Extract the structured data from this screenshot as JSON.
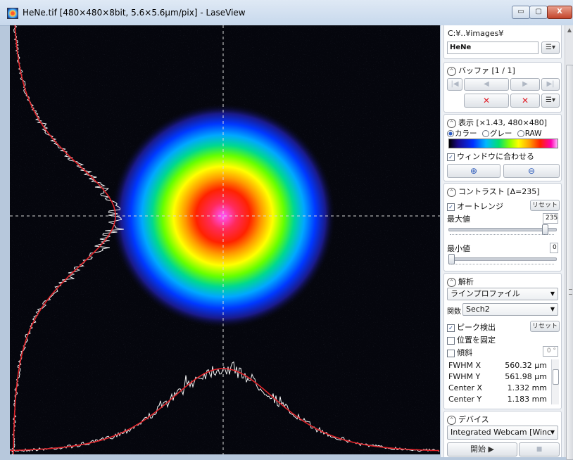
{
  "window": {
    "title": "HeNe.tif [480×480×8bit, 5.6×5.6μm/pix] - LaseView",
    "min_symbol": "▭",
    "max_symbol": "▢",
    "close_symbol": "X"
  },
  "file": {
    "path": "C:¥..¥images¥",
    "name": "HeNe"
  },
  "buffer": {
    "header": "バッファ [1 / 1]",
    "first_symbol": "|◀",
    "prev_symbol": "◀",
    "next_symbol": "▶",
    "last_symbol": "▶|",
    "delete_symbol": "✕",
    "delete_all_symbol": "✕"
  },
  "display": {
    "header": "表示 [×1.43, 480×480]",
    "modes": [
      "カラー",
      "グレー",
      "RAW"
    ],
    "selected_mode": "カラー",
    "fit_window_label": "ウィンドウに合わせる",
    "fit_window_checked": true,
    "zoom_in_symbol": "⊕",
    "zoom_out_symbol": "⊖"
  },
  "contrast": {
    "header": "コントラスト [Δ=235]",
    "auto_range_label": "オートレンジ",
    "auto_range_checked": true,
    "reset_label": "リセット",
    "max_label": "最大値",
    "max_value": "235",
    "min_label": "最小値",
    "min_value": "0",
    "max_fraction": 0.92,
    "min_fraction": 0.0
  },
  "analysis": {
    "header": "解析",
    "mode": "ラインプロファイル",
    "function_label": "関数",
    "function": "Sech2",
    "peak_detect_label": "ピーク検出",
    "peak_detect_checked": true,
    "reset_label": "リセット",
    "fix_position_label": "位置を固定",
    "tilt_label": "傾斜",
    "tilt_value": "0 °",
    "results": [
      {
        "name": "FWHM X",
        "value": "560.32 μm"
      },
      {
        "name": "FWHM Y",
        "value": "561.98 μm"
      },
      {
        "name": "Center X",
        "value": "1.332 mm"
      },
      {
        "name": "Center Y",
        "value": "1.183 mm"
      }
    ]
  },
  "device": {
    "header": "デバイス",
    "selected": "Integrated Webcam [Winc",
    "start_label": "開始 ▶",
    "stop_symbol": "■"
  },
  "icons": {
    "collapse": "^",
    "menu": "☰▾",
    "dropdown": "▼"
  }
}
